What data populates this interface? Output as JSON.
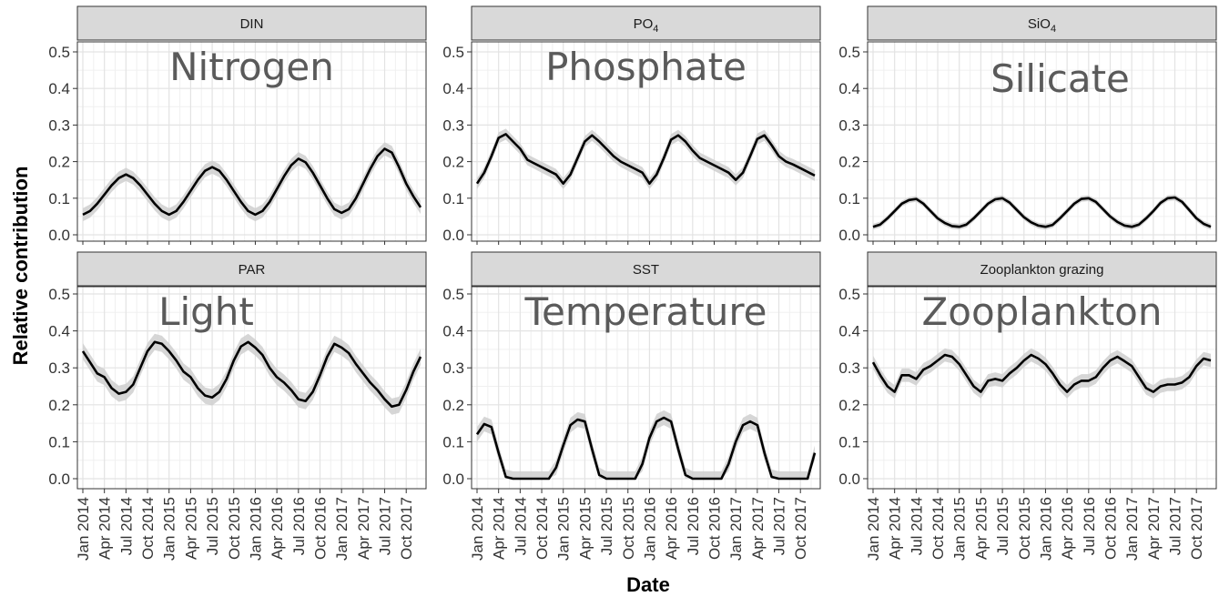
{
  "chart_data": {
    "type": "line",
    "xlabel": "Date",
    "ylabel": "Relative contribution",
    "ylim": [
      0,
      0.5
    ],
    "y_ticks": [
      "0.0",
      "0.1",
      "0.2",
      "0.3",
      "0.4",
      "0.5"
    ],
    "y_tick_values": [
      0,
      0.1,
      0.2,
      0.3,
      0.4,
      0.5
    ],
    "x_tick_labels": [
      "Jan 2014",
      "Apr 2014",
      "Jul 2014",
      "Oct 2014",
      "Jan 2015",
      "Apr 2015",
      "Jul 2015",
      "Oct 2015",
      "Jan 2016",
      "Apr 2016",
      "Jul 2016",
      "Oct 2016",
      "Jan 2017",
      "Apr 2017",
      "Jul 2017",
      "Oct 2017"
    ],
    "x_dates": [
      "2014-01",
      "2014-02",
      "2014-03",
      "2014-04",
      "2014-05",
      "2014-06",
      "2014-07",
      "2014-08",
      "2014-09",
      "2014-10",
      "2014-11",
      "2014-12",
      "2015-01",
      "2015-02",
      "2015-03",
      "2015-04",
      "2015-05",
      "2015-06",
      "2015-07",
      "2015-08",
      "2015-09",
      "2015-10",
      "2015-11",
      "2015-12",
      "2016-01",
      "2016-02",
      "2016-03",
      "2016-04",
      "2016-05",
      "2016-06",
      "2016-07",
      "2016-08",
      "2016-09",
      "2016-10",
      "2016-11",
      "2016-12",
      "2017-01",
      "2017-02",
      "2017-03",
      "2017-04",
      "2017-05",
      "2017-06",
      "2017-07",
      "2017-08",
      "2017-09",
      "2017-10",
      "2017-11",
      "2017-12"
    ],
    "grid": true,
    "legend": "none",
    "line_color": "#000000",
    "band_color": "#cfcfcf",
    "panels": [
      {
        "strip": "DIN",
        "strip_sub": "",
        "overlay": "Nitrogen",
        "values": [
          0.055,
          0.065,
          0.085,
          0.11,
          0.135,
          0.155,
          0.165,
          0.155,
          0.135,
          0.11,
          0.085,
          0.065,
          0.055,
          0.065,
          0.09,
          0.12,
          0.15,
          0.175,
          0.185,
          0.175,
          0.15,
          0.12,
          0.09,
          0.065,
          0.055,
          0.065,
          0.09,
          0.125,
          0.16,
          0.19,
          0.208,
          0.198,
          0.17,
          0.135,
          0.1,
          0.07,
          0.06,
          0.07,
          0.1,
          0.14,
          0.18,
          0.215,
          0.235,
          0.225,
          0.185,
          0.14,
          0.105,
          0.075
        ],
        "band": 0.018
      },
      {
        "strip": "PO",
        "strip_sub": "4",
        "overlay": "Phosphate",
        "values": [
          0.14,
          0.17,
          0.215,
          0.265,
          0.275,
          0.255,
          0.235,
          0.205,
          0.195,
          0.185,
          0.175,
          0.165,
          0.14,
          0.165,
          0.21,
          0.255,
          0.272,
          0.255,
          0.235,
          0.215,
          0.2,
          0.19,
          0.18,
          0.17,
          0.14,
          0.165,
          0.21,
          0.26,
          0.272,
          0.255,
          0.23,
          0.21,
          0.2,
          0.19,
          0.18,
          0.17,
          0.15,
          0.17,
          0.215,
          0.262,
          0.272,
          0.245,
          0.215,
          0.2,
          0.192,
          0.182,
          0.172,
          0.162
        ],
        "band": 0.015
      },
      {
        "strip": "SiO",
        "strip_sub": "4",
        "overlay": "Silicate",
        "values": [
          0.022,
          0.028,
          0.045,
          0.065,
          0.085,
          0.095,
          0.098,
          0.085,
          0.065,
          0.045,
          0.032,
          0.024,
          0.022,
          0.028,
          0.045,
          0.065,
          0.085,
          0.097,
          0.1,
          0.088,
          0.068,
          0.048,
          0.034,
          0.025,
          0.022,
          0.027,
          0.045,
          0.065,
          0.085,
          0.098,
          0.1,
          0.09,
          0.07,
          0.05,
          0.035,
          0.025,
          0.022,
          0.028,
          0.045,
          0.065,
          0.087,
          0.1,
          0.102,
          0.09,
          0.068,
          0.045,
          0.03,
          0.022
        ],
        "band": 0.008
      },
      {
        "strip": "PAR",
        "strip_sub": "",
        "overlay": "Light",
        "values": [
          0.345,
          0.315,
          0.285,
          0.275,
          0.245,
          0.23,
          0.235,
          0.255,
          0.3,
          0.345,
          0.37,
          0.365,
          0.345,
          0.32,
          0.29,
          0.275,
          0.245,
          0.225,
          0.22,
          0.235,
          0.27,
          0.32,
          0.358,
          0.37,
          0.355,
          0.335,
          0.3,
          0.275,
          0.26,
          0.24,
          0.215,
          0.21,
          0.235,
          0.28,
          0.33,
          0.365,
          0.355,
          0.34,
          0.31,
          0.285,
          0.26,
          0.24,
          0.215,
          0.195,
          0.2,
          0.24,
          0.29,
          0.33
        ],
        "band": 0.022
      },
      {
        "strip": "SST",
        "strip_sub": "",
        "overlay": "Temperature",
        "values": [
          0.12,
          0.148,
          0.14,
          0.07,
          0.005,
          0,
          0,
          0,
          0,
          0,
          0,
          0.03,
          0.09,
          0.145,
          0.16,
          0.155,
          0.08,
          0.01,
          0,
          0,
          0,
          0,
          0,
          0.04,
          0.11,
          0.155,
          0.165,
          0.155,
          0.08,
          0.01,
          0,
          0,
          0,
          0,
          0,
          0.04,
          0.1,
          0.145,
          0.155,
          0.145,
          0.07,
          0.005,
          0,
          0,
          0,
          0,
          0,
          0.07
        ],
        "band": 0.02
      },
      {
        "strip": "Zooplankton grazing",
        "strip_sub": "",
        "overlay": "Zooplankton",
        "values": [
          0.315,
          0.28,
          0.25,
          0.235,
          0.28,
          0.28,
          0.27,
          0.295,
          0.305,
          0.32,
          0.335,
          0.33,
          0.31,
          0.28,
          0.25,
          0.235,
          0.265,
          0.27,
          0.265,
          0.285,
          0.3,
          0.32,
          0.335,
          0.325,
          0.31,
          0.285,
          0.255,
          0.235,
          0.255,
          0.265,
          0.265,
          0.275,
          0.3,
          0.32,
          0.33,
          0.318,
          0.305,
          0.275,
          0.245,
          0.235,
          0.25,
          0.255,
          0.255,
          0.26,
          0.275,
          0.305,
          0.325,
          0.32
        ],
        "band": 0.018
      }
    ]
  }
}
